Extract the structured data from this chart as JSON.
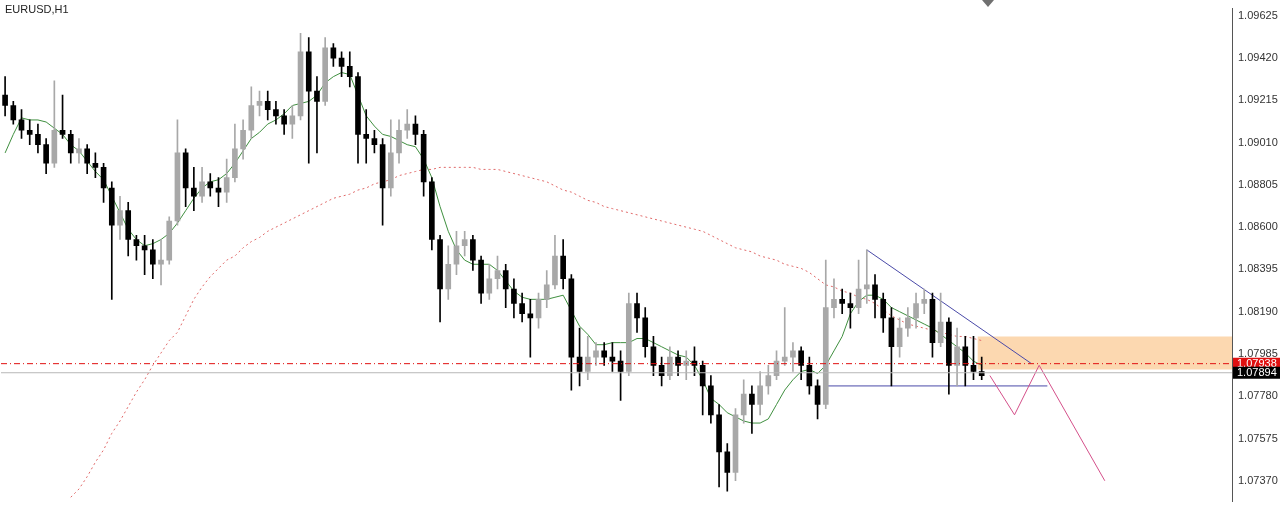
{
  "chart_data": {
    "type": "candlestick",
    "title": "EURUSD,H1",
    "tick_labels": "y",
    "categories": [
      null,
      null,
      null,
      null,
      null,
      null,
      null,
      null,
      null,
      null,
      null,
      null,
      null,
      null,
      null,
      null,
      null,
      null,
      null,
      null,
      null,
      null,
      null,
      null,
      null,
      null,
      null,
      null,
      null,
      null,
      null,
      null,
      null,
      null,
      null,
      null,
      null,
      null,
      null,
      null,
      null,
      null,
      null,
      null,
      null,
      null,
      null,
      null,
      null,
      null,
      null,
      null,
      null,
      null,
      null,
      null,
      null,
      null,
      null,
      null,
      null,
      null,
      null,
      null,
      null,
      null,
      null,
      null,
      null,
      null,
      null,
      null,
      null,
      null,
      null,
      null,
      null,
      null,
      null,
      null,
      null,
      null,
      null,
      null,
      null,
      null,
      null,
      null,
      null,
      null,
      null,
      null,
      null,
      null,
      null,
      null,
      null,
      null,
      null,
      null,
      null,
      null,
      null,
      null,
      null,
      null,
      null,
      null,
      null,
      null,
      null,
      null,
      null,
      null,
      null,
      null,
      null,
      null,
      null,
      null,
      null,
      null,
      null,
      null,
      null,
      null,
      null,
      null,
      null,
      null,
      null,
      null,
      null,
      null,
      null,
      null,
      null,
      null,
      null,
      null,
      null,
      null,
      null,
      null,
      null,
      null,
      null,
      null,
      null,
      null
    ],
    "ylim": [
      1.0727,
      1.0966
    ],
    "yticks": [
      1.09625,
      {
        "value": 1.0942,
        "label": "1.09420"
      },
      1.09215,
      {
        "value": 1.0901,
        "label": "1.09010"
      },
      1.08805,
      {
        "value": 1.086,
        "label": "1.08600"
      },
      1.08395,
      {
        "value": 1.0819,
        "label": "1.08190"
      },
      1.07985,
      {
        "value": 1.0778,
        "label": "1.07780"
      },
      1.07575,
      {
        "value": 1.0737,
        "label": "1.07370"
      }
    ],
    "ref_lines": [
      {
        "axis": "y",
        "value": 1.07938,
        "label": "1.07938",
        "color": "#e01010",
        "line_style": "dashed"
      },
      {
        "axis": "y",
        "value": 1.07894,
        "label": "1.07894",
        "color": "#b8b8b8",
        "line_style": "solid"
      }
    ],
    "bands": [
      {
        "axis": "y",
        "from": 1.0791,
        "to": 1.0807,
        "color": "#fcd8b0"
      }
    ],
    "series": [
      {
        "type": "line",
        "color": "#e06a6a",
        "line_style": "dotted",
        "values": [
          null,
          null,
          null,
          null,
          null,
          null,
          null,
          null,
          1.0729,
          1.0733,
          1.0739,
          1.0746,
          1.0752,
          1.076,
          1.0766,
          1.0773,
          1.078,
          1.0786,
          1.0793,
          1.0799,
          1.0805,
          1.0809,
          1.0817,
          1.0825,
          1.0831,
          1.0836,
          1.084,
          1.0844,
          1.0846,
          1.085,
          1.0853,
          1.0855,
          1.0858,
          1.086,
          1.0862,
          1.0864,
          1.0866,
          1.0868,
          1.087,
          1.0872,
          1.0874,
          1.0875,
          1.0876,
          1.0878,
          1.0879,
          1.0881,
          1.0882,
          1.0883,
          1.0885,
          1.0886,
          1.0887,
          1.0888,
          1.0888,
          1.0889,
          1.0889,
          1.0889,
          1.0889,
          1.0889,
          1.0888,
          1.0888,
          1.0888,
          1.0887,
          1.0886,
          1.0885,
          1.0884,
          1.0883,
          1.0882,
          1.088,
          1.0878,
          1.0877,
          1.0875,
          1.0873,
          1.0872,
          1.087,
          1.0869,
          1.0868,
          1.0867,
          1.0866,
          1.0865,
          1.0864,
          1.0863,
          1.0862,
          1.0861,
          1.086,
          1.0859,
          1.0858,
          1.0856,
          1.0854,
          1.0852,
          1.085,
          1.0849,
          1.0848,
          1.0846,
          1.0845,
          1.0844,
          1.0842,
          1.0841,
          1.084,
          1.0838,
          1.0835,
          1.0832,
          1.0831,
          1.0829,
          1.0828,
          1.0826,
          1.0825,
          1.0823,
          1.082,
          1.0817,
          1.0815,
          1.0813,
          1.0812,
          1.0811,
          null,
          null,
          1.0808,
          1.0807,
          1.0807,
          1.0806,
          1.0805,
          null,
          null,
          null,
          null,
          null,
          null,
          null,
          null,
          null,
          null,
          null,
          null,
          null,
          null,
          null,
          null,
          null,
          null,
          null,
          null,
          null,
          null,
          null,
          null,
          null,
          null,
          null,
          null,
          null,
          null
        ]
      },
      {
        "type": "line",
        "color": "#3f8f3f",
        "line_style": "solid",
        "values": [
          1.0896,
          1.0905,
          1.0913,
          1.0912,
          1.0912,
          1.0911,
          1.0908,
          1.0905,
          1.09,
          1.0897,
          1.0892,
          1.0887,
          1.0883,
          null,
          null,
          1.0859,
          1.0854,
          1.0851,
          1.0852,
          1.0854,
          1.0857,
          1.0862,
          1.0868,
          1.0874,
          1.0879,
          1.0882,
          1.0883,
          1.0886,
          1.0891,
          1.0897,
          1.0903,
          1.0906,
          1.091,
          1.0912,
          1.0915,
          1.0919,
          1.092,
          1.0921,
          1.0924,
          1.093,
          1.0933,
          1.0935,
          1.0934,
          null,
          1.0914,
          1.0909,
          1.0905,
          1.0904,
          1.0902,
          1.09,
          1.0899,
          1.0893,
          1.0884,
          1.087,
          1.0858,
          1.0849,
          1.0844,
          1.0842,
          1.0842,
          1.0842,
          1.0839,
          1.0834,
          1.0829,
          1.0826,
          1.0825,
          1.0825,
          1.0825,
          1.0826,
          1.0827,
          null,
          1.0812,
          1.0808,
          1.0803,
          1.0803,
          1.0804,
          1.0804,
          1.0804,
          1.0806,
          1.0806,
          1.0804,
          1.0802,
          1.08,
          1.0798,
          1.0797,
          1.0793,
          1.0786,
          1.0777,
          1.0774,
          1.077,
          1.0768,
          1.0766,
          1.0765,
          1.0765,
          1.0767,
          1.0774,
          1.0781,
          1.0786,
          1.079,
          1.0791,
          1.0789,
          1.0793,
          1.08,
          1.0807,
          1.0818,
          1.0824,
          1.0827,
          1.0827,
          1.0825,
          1.0821,
          1.0819,
          1.0817,
          1.0815,
          1.0813,
          1.0811,
          1.0808,
          1.0805,
          1.0802,
          1.0799,
          1.0795,
          1.0793,
          null,
          null,
          null,
          null,
          null,
          null,
          null,
          null,
          null,
          null,
          null,
          null,
          null,
          null,
          null,
          null,
          null,
          null,
          null,
          null,
          null,
          null,
          null,
          null,
          null,
          null,
          null,
          null,
          null,
          null
        ]
      },
      {
        "type": "line",
        "color": "#4a4aa8",
        "line_style": "solid",
        "values": [
          null,
          null,
          null,
          null,
          null,
          null,
          null,
          null,
          null,
          null,
          null,
          null,
          null,
          null,
          null,
          null,
          null,
          null,
          null,
          null,
          null,
          null,
          null,
          null,
          null,
          null,
          null,
          null,
          null,
          null,
          null,
          null,
          null,
          null,
          null,
          null,
          null,
          null,
          null,
          null,
          null,
          null,
          null,
          null,
          null,
          null,
          null,
          null,
          null,
          null,
          null,
          null,
          null,
          null,
          null,
          null,
          null,
          null,
          null,
          null,
          null,
          null,
          null,
          null,
          null,
          null,
          null,
          null,
          null,
          null,
          null,
          null,
          null,
          null,
          null,
          null,
          null,
          null,
          null,
          null,
          null,
          null,
          null,
          null,
          null,
          null,
          null,
          null,
          null,
          null,
          null,
          null,
          null,
          null,
          null,
          null,
          null,
          null,
          null,
          null,
          null,
          null,
          null,
          null,
          null,
          1.0849,
          null,
          null,
          null,
          null,
          null,
          null,
          null,
          null,
          null,
          null,
          null,
          null,
          null,
          null,
          null,
          null,
          null,
          null,
          null,
          1.0794,
          null,
          null,
          null,
          null,
          null,
          null,
          null,
          null,
          null,
          null,
          null,
          null,
          null,
          null,
          null,
          null,
          null,
          null,
          null,
          null,
          null,
          null,
          null,
          null
        ]
      },
      {
        "type": "line",
        "color": "#4a4aa8",
        "line_style": "solid",
        "values": [
          null,
          null,
          null,
          null,
          null,
          null,
          null,
          null,
          null,
          null,
          null,
          null,
          null,
          null,
          null,
          null,
          null,
          null,
          null,
          null,
          null,
          null,
          null,
          null,
          null,
          null,
          null,
          null,
          null,
          null,
          null,
          null,
          null,
          null,
          null,
          null,
          null,
          null,
          null,
          null,
          null,
          null,
          null,
          null,
          null,
          null,
          null,
          null,
          null,
          null,
          null,
          null,
          null,
          null,
          null,
          null,
          null,
          null,
          null,
          null,
          null,
          null,
          null,
          null,
          null,
          null,
          null,
          null,
          null,
          null,
          null,
          null,
          null,
          null,
          null,
          null,
          null,
          null,
          null,
          null,
          null,
          null,
          null,
          null,
          null,
          null,
          null,
          null,
          null,
          null,
          null,
          null,
          null,
          null,
          null,
          null,
          null,
          null,
          null,
          null,
          1.0783,
          null,
          null,
          null,
          null,
          null,
          null,
          null,
          null,
          null,
          null,
          null,
          null,
          null,
          null,
          null,
          null,
          null,
          null,
          null,
          null,
          null,
          null,
          null,
          null,
          null,
          null,
          1.0783,
          null,
          null,
          null,
          null,
          null,
          null,
          null,
          null,
          null,
          null,
          null,
          null,
          null,
          null,
          null,
          null,
          null,
          null,
          null,
          null,
          null,
          null
        ]
      },
      {
        "type": "line",
        "color": "#d4508a",
        "line_style": "solid",
        "values": [
          null,
          null,
          null,
          null,
          null,
          null,
          null,
          null,
          null,
          null,
          null,
          null,
          null,
          null,
          null,
          null,
          null,
          null,
          null,
          null,
          null,
          null,
          null,
          null,
          null,
          null,
          null,
          null,
          null,
          null,
          null,
          null,
          null,
          null,
          null,
          null,
          null,
          null,
          null,
          null,
          null,
          null,
          null,
          null,
          null,
          null,
          null,
          null,
          null,
          null,
          null,
          null,
          null,
          null,
          null,
          null,
          null,
          null,
          null,
          null,
          null,
          null,
          null,
          null,
          null,
          null,
          null,
          null,
          null,
          null,
          null,
          null,
          null,
          null,
          null,
          null,
          null,
          null,
          null,
          null,
          null,
          null,
          null,
          null,
          null,
          null,
          null,
          null,
          null,
          null,
          null,
          null,
          null,
          null,
          null,
          null,
          null,
          null,
          null,
          null,
          null,
          null,
          null,
          null,
          null,
          null,
          null,
          null,
          null,
          null,
          null,
          null,
          null,
          null,
          null,
          null,
          null,
          null,
          null,
          null,
          1.0788,
          null,
          null,
          1.0769,
          null,
          null,
          1.0793,
          null,
          null,
          null,
          null,
          null,
          null,
          null,
          1.0737,
          null,
          null,
          null,
          null,
          null,
          null,
          null,
          null,
          null,
          null,
          null,
          null,
          null,
          null,
          null
        ]
      },
      {
        "colors": [
          "#000000",
          "#000000",
          "#000000",
          "#000000",
          "#000000",
          "#000000",
          "#a8a8a8",
          "#000000",
          "#000000",
          "#a8a8a8",
          "#000000",
          "#000000",
          "#000000",
          "#000000",
          "#a8a8a8",
          "#000000",
          "#000000",
          "#000000",
          "#000000",
          "#a8a8a8",
          "#a8a8a8",
          "#a8a8a8",
          "#000000",
          "#000000",
          "#a8a8a8",
          "#000000",
          "#000000",
          "#a8a8a8",
          "#a8a8a8",
          "#a8a8a8",
          "#a8a8a8",
          "#a8a8a8",
          "#000000",
          "#000000",
          "#000000",
          "#a8a8a8",
          "#a8a8a8",
          "#000000",
          "#000000",
          "#a8a8a8",
          "#000000",
          "#000000",
          "#000000",
          "#000000",
          "#000000",
          "#000000",
          "#000000",
          "#a8a8a8",
          "#a8a8a8",
          "#a8a8a8",
          "#000000",
          "#000000",
          "#000000",
          "#000000",
          "#a8a8a8",
          "#a8a8a8",
          "#a8a8a8",
          "#000000",
          "#000000",
          "#a8a8a8",
          "#a8a8a8",
          "#000000",
          "#000000",
          "#000000",
          "#000000",
          "#a8a8a8",
          "#a8a8a8",
          "#a8a8a8",
          "#000000",
          "#000000",
          "#000000",
          "#a8a8a8",
          "#a8a8a8",
          "#000000",
          "#000000",
          "#000000",
          "#a8a8a8",
          "#000000",
          "#000000",
          "#000000",
          "#000000",
          "#a8a8a8",
          "#000000",
          "#a8a8a8",
          "#000000",
          "#000000",
          "#000000",
          "#000000",
          "#000000",
          "#a8a8a8",
          "#a8a8a8",
          "#000000",
          "#a8a8a8",
          "#a8a8a8",
          "#a8a8a8",
          "#a8a8a8",
          "#a8a8a8",
          "#000000",
          "#000000",
          "#000000",
          "#a8a8a8",
          "#a8a8a8",
          "#000000",
          "#000000",
          "#a8a8a8",
          "#a8a8a8",
          "#000000",
          "#000000",
          "#000000",
          "#a8a8a8",
          "#a8a8a8",
          "#a8a8a8",
          "#a8a8a8",
          "#000000",
          "#a8a8a8",
          "#000000",
          "#a8a8a8",
          "#000000",
          "#000000",
          "#000000",
          null,
          null,
          null,
          null,
          null,
          null,
          null,
          null,
          null,
          null,
          null,
          null,
          null,
          null,
          null,
          null,
          null,
          null,
          null,
          null,
          null,
          null,
          null,
          null,
          null,
          null,
          null,
          null,
          null,
          null
        ],
        "ohlc": [
          [
            1.0924,
            1.0933,
            1.0914,
            1.0919
          ],
          [
            1.0919,
            1.0921,
            1.091,
            1.0912
          ],
          [
            1.0912,
            1.0917,
            1.0903,
            1.0907
          ],
          [
            1.0907,
            1.0912,
            1.09,
            1.0905
          ],
          [
            1.0905,
            1.091,
            1.0896,
            1.09
          ],
          [
            1.09,
            1.0903,
            1.0886,
            1.0891
          ],
          [
            1.0891,
            1.0931,
            1.0889,
            1.0907
          ],
          [
            1.0907,
            1.0924,
            1.0903,
            1.0905
          ],
          [
            1.0905,
            1.0907,
            1.0891,
            1.0896
          ],
          [
            1.0896,
            1.0903,
            1.0891,
            1.0898
          ],
          [
            1.0898,
            1.09,
            1.0886,
            1.0891
          ],
          [
            1.0891,
            1.0896,
            1.0884,
            1.0889
          ],
          [
            1.0889,
            1.0891,
            1.0872,
            1.0879
          ],
          [
            1.0879,
            1.0882,
            1.0825,
            1.0861
          ],
          [
            1.0861,
            1.0875,
            1.0854,
            1.0868
          ],
          [
            1.0868,
            1.0872,
            1.0846,
            1.0854
          ],
          [
            1.0854,
            1.0856,
            1.0844,
            1.0851
          ],
          [
            1.0851,
            1.0856,
            1.0837,
            1.0849
          ],
          [
            1.0849,
            1.0854,
            1.0835,
            1.0842
          ],
          [
            1.0842,
            1.0854,
            1.0832,
            1.0844
          ],
          [
            1.0844,
            1.0865,
            1.0842,
            1.0863
          ],
          [
            1.0863,
            1.0912,
            1.0861,
            1.0896
          ],
          [
            1.0896,
            1.0898,
            1.087,
            1.0879
          ],
          [
            1.0879,
            1.0889,
            1.0868,
            1.0875
          ],
          [
            1.0875,
            1.0889,
            1.0872,
            1.0882
          ],
          [
            1.0882,
            1.0886,
            1.0875,
            1.0879
          ],
          [
            1.0879,
            1.0884,
            1.087,
            1.0877
          ],
          [
            1.0877,
            1.0893,
            1.0872,
            1.0884
          ],
          [
            1.0884,
            1.091,
            1.0882,
            1.0898
          ],
          [
            1.0898,
            1.0912,
            1.0893,
            1.0907
          ],
          [
            1.0907,
            1.0928,
            1.0903,
            1.0919
          ],
          [
            1.0919,
            1.0926,
            1.0914,
            1.0921
          ],
          [
            1.0921,
            1.0926,
            1.0912,
            1.0917
          ],
          [
            1.0917,
            1.0921,
            1.091,
            1.0914
          ],
          [
            1.0914,
            1.0917,
            1.0905,
            1.091
          ],
          [
            1.091,
            1.0919,
            1.0903,
            1.0914
          ],
          [
            1.0914,
            1.0954,
            1.0912,
            1.0945
          ],
          [
            1.0945,
            1.0952,
            1.0891,
            1.0926
          ],
          [
            1.0926,
            1.0933,
            1.0896,
            1.0921
          ],
          [
            1.0921,
            1.0952,
            1.0919,
            1.0947
          ],
          [
            1.0947,
            1.0949,
            1.0938,
            1.0942
          ],
          [
            1.0942,
            1.0945,
            1.0933,
            1.0938
          ],
          [
            1.0938,
            1.0945,
            1.0928,
            1.0933
          ],
          [
            1.0933,
            1.0935,
            1.0891,
            1.0905
          ],
          [
            1.0905,
            1.0917,
            1.0891,
            1.0903
          ],
          [
            1.0903,
            1.0907,
            1.0896,
            1.09
          ],
          [
            1.09,
            1.0903,
            1.0861,
            1.0879
          ],
          [
            1.0879,
            1.0912,
            1.0875,
            1.0896
          ],
          [
            1.0896,
            1.0912,
            1.0891,
            1.0907
          ],
          [
            1.0907,
            1.0917,
            1.0903,
            1.091
          ],
          [
            1.091,
            1.0914,
            1.09,
            1.0905
          ],
          [
            1.0905,
            1.0907,
            1.0875,
            1.0882
          ],
          [
            1.0882,
            1.0884,
            1.0849,
            1.0854
          ],
          [
            1.0854,
            1.0856,
            1.0814,
            1.083
          ],
          [
            1.083,
            1.0851,
            1.0825,
            1.0842
          ],
          [
            1.0842,
            1.0858,
            1.0837,
            1.0851
          ],
          [
            1.0851,
            1.0858,
            1.0846,
            1.0854
          ],
          [
            1.0854,
            1.0856,
            1.0839,
            1.0844
          ],
          [
            1.0844,
            1.0846,
            1.0823,
            1.0828
          ],
          [
            1.0828,
            1.0842,
            1.0825,
            1.0835
          ],
          [
            1.0835,
            1.0846,
            1.083,
            1.0839
          ],
          [
            1.0839,
            1.0842,
            1.0821,
            1.083
          ],
          [
            1.083,
            1.0835,
            1.0816,
            1.0823
          ],
          [
            1.0823,
            1.0828,
            1.0814,
            1.0818
          ],
          [
            1.0818,
            1.0825,
            1.0797,
            1.0816
          ],
          [
            1.0816,
            1.0828,
            1.0811,
            1.0825
          ],
          [
            1.0825,
            1.0839,
            1.0821,
            1.0832
          ],
          [
            1.0832,
            1.0856,
            1.083,
            1.0846
          ],
          [
            1.0846,
            1.0854,
            1.083,
            1.0835
          ],
          [
            1.0835,
            1.0837,
            1.0781,
            1.0797
          ],
          [
            1.0797,
            1.0811,
            1.0783,
            1.079
          ],
          [
            1.079,
            1.0807,
            1.0786,
            1.0797
          ],
          [
            1.0797,
            1.0804,
            1.0793,
            1.08
          ],
          [
            1.08,
            1.0804,
            1.0793,
            1.0797
          ],
          [
            1.0797,
            1.0804,
            1.079,
            1.0795
          ],
          [
            1.0795,
            1.08,
            1.0776,
            1.079
          ],
          [
            1.079,
            1.0828,
            1.0788,
            1.0823
          ],
          [
            1.0823,
            1.0828,
            1.0809,
            1.0816
          ],
          [
            1.0816,
            1.0821,
            1.0797,
            1.0802
          ],
          [
            1.0802,
            1.0807,
            1.0788,
            1.0793
          ],
          [
            1.0793,
            1.0797,
            1.0783,
            1.0788
          ],
          [
            1.0788,
            1.0802,
            1.0786,
            1.0797
          ],
          [
            1.0797,
            1.08,
            1.0788,
            1.0793
          ],
          [
            1.0793,
            1.08,
            1.0786,
            1.0795
          ],
          [
            1.0795,
            1.0802,
            1.0788,
            1.0793
          ],
          [
            1.0793,
            1.0795,
            1.0769,
            1.0783
          ],
          [
            1.0783,
            1.0788,
            1.0765,
            1.0769
          ],
          [
            1.0769,
            1.0774,
            1.0734,
            1.0751
          ],
          [
            1.0751,
            1.0755,
            1.0732,
            1.0741
          ],
          [
            1.0741,
            1.0772,
            1.0737,
            1.0769
          ],
          [
            1.0769,
            1.0786,
            1.0765,
            1.0779
          ],
          [
            1.0779,
            1.0783,
            1.076,
            1.0774
          ],
          [
            1.0774,
            1.079,
            1.0769,
            1.0783
          ],
          [
            1.0783,
            1.0793,
            1.0779,
            1.0788
          ],
          [
            1.0788,
            1.08,
            1.0786,
            1.0795
          ],
          [
            1.0795,
            1.0821,
            1.0793,
            1.0797
          ],
          [
            1.0797,
            1.0804,
            1.079,
            1.08
          ],
          [
            1.08,
            1.0802,
            1.0786,
            1.0793
          ],
          [
            1.0793,
            1.0797,
            1.0779,
            1.0783
          ],
          [
            1.0783,
            1.0786,
            1.0767,
            1.0774
          ],
          [
            1.0774,
            1.0844,
            1.0772,
            1.0821
          ],
          [
            1.0821,
            1.0835,
            1.0816,
            1.0825
          ],
          [
            1.0825,
            1.083,
            1.0818,
            1.0823
          ],
          [
            1.0823,
            1.0828,
            1.0811,
            1.0821
          ],
          [
            1.0821,
            1.0844,
            1.0818,
            1.083
          ],
          [
            1.083,
            1.0849,
            1.0823,
            1.0832
          ],
          [
            1.0832,
            1.0837,
            1.0816,
            1.0825
          ],
          [
            1.0825,
            1.0828,
            1.0809,
            1.0816
          ],
          [
            1.0816,
            1.0821,
            1.0783,
            1.0802
          ],
          [
            1.0802,
            1.0816,
            1.0797,
            1.0811
          ],
          [
            1.0811,
            1.0821,
            1.0807,
            1.0816
          ],
          [
            1.0816,
            1.0828,
            1.0811,
            1.0823
          ],
          [
            1.0823,
            1.083,
            1.0818,
            1.0825
          ],
          [
            1.0825,
            1.0828,
            1.0797,
            1.0804
          ],
          [
            1.0804,
            1.0828,
            1.0802,
            1.0814
          ],
          [
            1.0814,
            1.0816,
            1.0779,
            1.0793
          ],
          [
            1.0793,
            1.0811,
            1.0783,
            1.0802
          ],
          [
            1.0802,
            1.0807,
            1.0783,
            1.0793
          ],
          [
            1.0793,
            1.0807,
            1.0786,
            1.079
          ],
          [
            1.079,
            1.0797,
            1.0786,
            1.0788
          ],
          null,
          null,
          null,
          null,
          null,
          null,
          null,
          null,
          null,
          null,
          null,
          null,
          null,
          null,
          null,
          null,
          null,
          null,
          null,
          null,
          null,
          null,
          null,
          null,
          null,
          null,
          null,
          null,
          null,
          null
        ]
      }
    ]
  }
}
